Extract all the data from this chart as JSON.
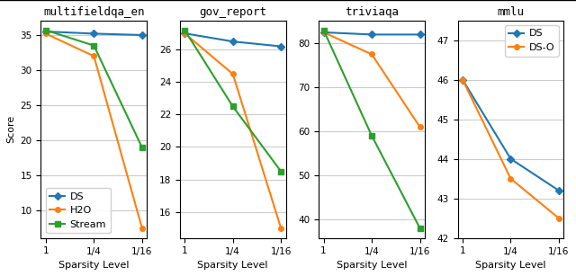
{
  "subplots": [
    {
      "title": "multifieldqa_en",
      "xlabel": "Sparsity Level",
      "ylabel": "Score",
      "xticks": [
        0,
        1,
        2
      ],
      "xticklabels": [
        "1",
        "1/4",
        "1/16"
      ],
      "series": [
        {
          "label": "DS",
          "color": "#1f77b4",
          "marker": "D",
          "values": [
            35.5,
            35.2,
            35.0
          ]
        },
        {
          "label": "H2O",
          "color": "#ff7f0e",
          "marker": "o",
          "values": [
            35.2,
            32.0,
            7.5
          ]
        },
        {
          "label": "Stream",
          "color": "#2ca02c",
          "marker": "s",
          "values": [
            35.7,
            33.5,
            19.0
          ]
        }
      ],
      "ylim": [
        null,
        null
      ],
      "legend": true,
      "legend_loc": "lower left"
    },
    {
      "title": "gov_report",
      "xlabel": "Sparsity Level",
      "ylabel": null,
      "xticks": [
        0,
        1,
        2
      ],
      "xticklabels": [
        "1",
        "1/4",
        "1/16"
      ],
      "series": [
        {
          "label": "DS",
          "color": "#1f77b4",
          "marker": "D",
          "values": [
            27.0,
            26.5,
            26.2
          ]
        },
        {
          "label": "H2O",
          "color": "#ff7f0e",
          "marker": "o",
          "values": [
            27.0,
            24.5,
            15.0
          ]
        },
        {
          "label": "Stream",
          "color": "#2ca02c",
          "marker": "s",
          "values": [
            27.2,
            22.5,
            18.5
          ]
        }
      ],
      "ylim": [
        null,
        null
      ],
      "legend": false,
      "legend_loc": null
    },
    {
      "title": "triviaqa",
      "xlabel": "Sparsity Level",
      "ylabel": null,
      "xticks": [
        0,
        1,
        2
      ],
      "xticklabels": [
        "1",
        "1/4",
        "1/16"
      ],
      "series": [
        {
          "label": "DS",
          "color": "#1f77b4",
          "marker": "D",
          "values": [
            82.5,
            82.0,
            82.0
          ]
        },
        {
          "label": "H2O",
          "color": "#ff7f0e",
          "marker": "o",
          "values": [
            82.5,
            77.5,
            61.0
          ]
        },
        {
          "label": "Stream",
          "color": "#2ca02c",
          "marker": "s",
          "values": [
            83.0,
            59.0,
            38.0
          ]
        }
      ],
      "ylim": [
        null,
        null
      ],
      "legend": false,
      "legend_loc": null
    },
    {
      "title": "mmlu",
      "xlabel": "Sparsity Level",
      "ylabel": null,
      "xticks": [
        0,
        1,
        2
      ],
      "xticklabels": [
        "1",
        "1/4",
        "1/16"
      ],
      "series": [
        {
          "label": "DS",
          "color": "#1f77b4",
          "marker": "D",
          "values": [
            46.0,
            44.0,
            43.2
          ]
        },
        {
          "label": "DS-O",
          "color": "#ff7f0e",
          "marker": "o",
          "values": [
            46.0,
            43.5,
            42.5
          ]
        }
      ],
      "ylim": [
        42.0,
        47.5
      ],
      "legend": true,
      "legend_loc": "upper right"
    }
  ],
  "figure_bg": "#ffffff",
  "axes_bg": "#ffffff",
  "grid_color": "#cccccc",
  "title_fontsize": 9,
  "label_fontsize": 8,
  "tick_fontsize": 7.5,
  "legend_fontsize": 8,
  "linewidth": 1.5,
  "markersize": 4
}
